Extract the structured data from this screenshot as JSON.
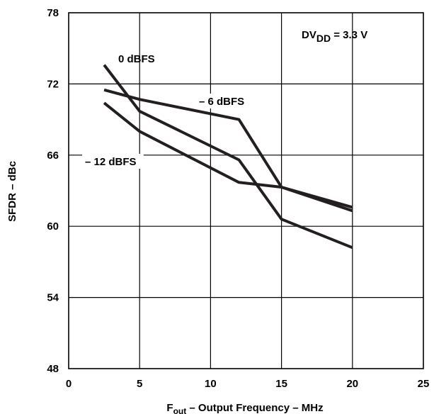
{
  "chart_data": {
    "type": "line",
    "xlabel_prefix": "F",
    "xlabel_sub": "out",
    "xlabel_rest": " – Output Frequency – MHz",
    "ylabel": "SFDR – dBc",
    "xlim": [
      0,
      25
    ],
    "ylim": [
      48,
      78
    ],
    "xticks": [
      0,
      5,
      10,
      15,
      20,
      25
    ],
    "yticks": [
      48,
      54,
      60,
      66,
      72,
      78
    ],
    "grid": true,
    "annotation": {
      "main": "DV",
      "sub": "DD",
      "rest": " = 3.3 V"
    },
    "series": [
      {
        "name": "0 dBFS",
        "x": [
          2.5,
          5,
          12,
          15,
          20
        ],
        "y": [
          73.6,
          69.7,
          65.6,
          60.6,
          58.2
        ]
      },
      {
        "name": "– 6 dBFS",
        "x": [
          2.5,
          5,
          12,
          15,
          20
        ],
        "y": [
          71.5,
          70.7,
          69.0,
          63.3,
          61.3
        ]
      },
      {
        "name": "– 12 dBFS",
        "x": [
          2.5,
          5,
          12,
          15,
          20
        ],
        "y": [
          70.4,
          68.0,
          63.7,
          63.3,
          61.6
        ]
      }
    ]
  }
}
